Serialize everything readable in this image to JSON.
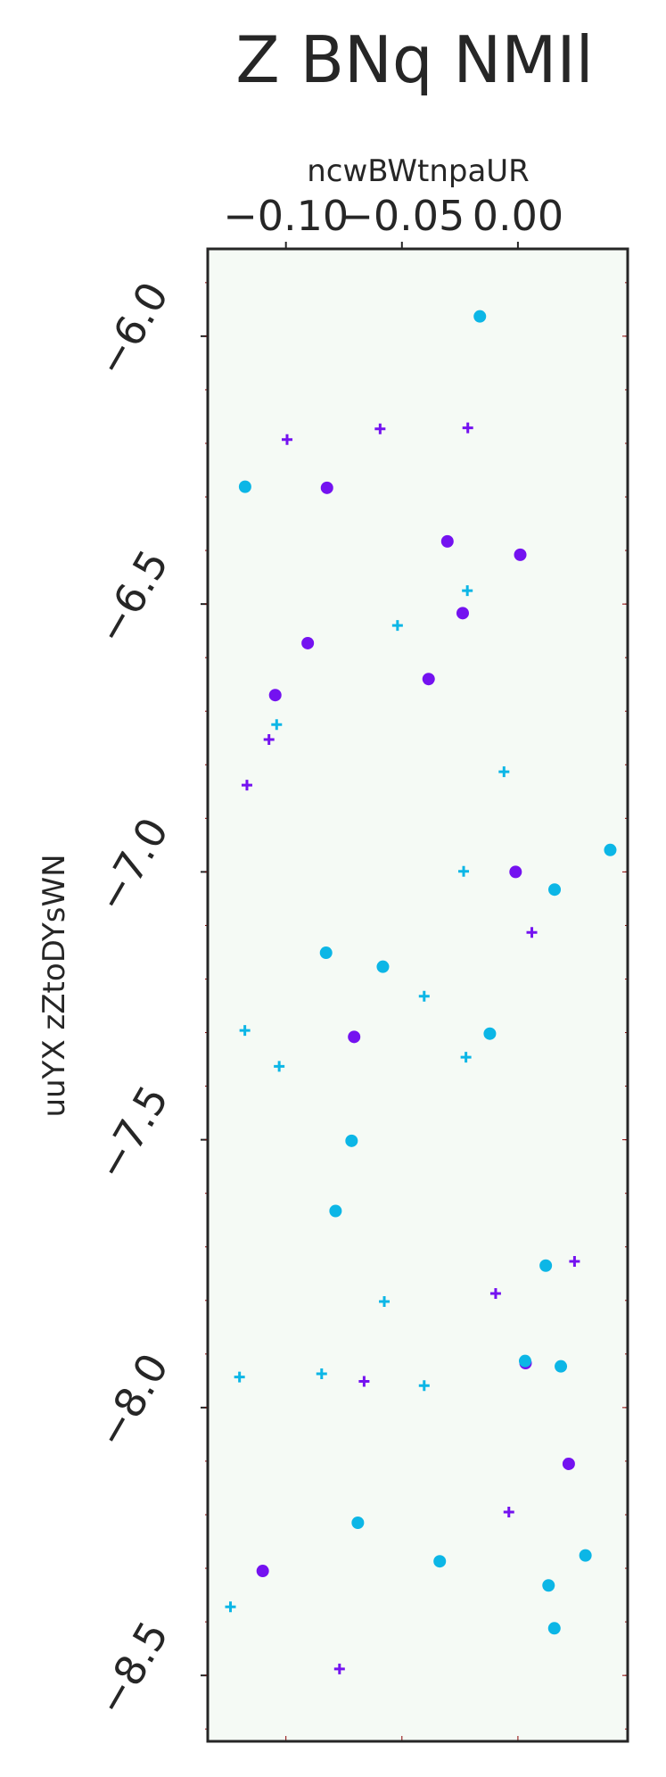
{
  "chart_data": {
    "type": "scatter",
    "title": "Z BNq NMIl",
    "xlabel": "ncwBWtnpaUR",
    "ylabel": "uuYX zZtoDYsWN",
    "x_axis_position": "top",
    "xlim": [
      -0.1337,
      0.0473
    ],
    "ylim": [
      -8.623,
      -5.837
    ],
    "xticks": [
      {
        "value": -0.1,
        "label": "−0.10"
      },
      {
        "value": -0.05,
        "label": "−0.05"
      },
      {
        "value": 0.0,
        "label": "0.00"
      }
    ],
    "yticks": [
      {
        "value": -6.0,
        "label": "−6.0"
      },
      {
        "value": -6.5,
        "label": "−6.5"
      },
      {
        "value": -7.0,
        "label": "−7.0"
      },
      {
        "value": -7.5,
        "label": "−7.5"
      },
      {
        "value": -8.0,
        "label": "−8.0"
      },
      {
        "value": -8.5,
        "label": "−8.5"
      }
    ],
    "plot_background": "#f5faf5",
    "series": [
      {
        "name": "purple-dots",
        "marker": "circle",
        "color": "#7412f0",
        "points": [
          {
            "x": -0.0823,
            "y": -6.283
          },
          {
            "x": -0.0304,
            "y": -6.383
          },
          {
            "x": 0.001,
            "y": -6.408
          },
          {
            "x": -0.0238,
            "y": -6.517
          },
          {
            "x": -0.0906,
            "y": -6.573
          },
          {
            "x": -0.0385,
            "y": -6.64
          },
          {
            "x": -0.1046,
            "y": -6.67
          },
          {
            "x": -0.001,
            "y": -7.0
          },
          {
            "x": -0.0706,
            "y": -7.308
          },
          {
            "x": 0.0033,
            "y": -7.917
          },
          {
            "x": 0.0219,
            "y": -8.105
          },
          {
            "x": -0.11,
            "y": -8.305
          }
        ]
      },
      {
        "name": "purple-plus",
        "marker": "plus",
        "color": "#7412f0",
        "points": [
          {
            "x": -0.0995,
            "y": -6.193
          },
          {
            "x": -0.0594,
            "y": -6.173
          },
          {
            "x": -0.0216,
            "y": -6.171
          },
          {
            "x": -0.1073,
            "y": -6.753
          },
          {
            "x": -0.1168,
            "y": -6.838
          },
          {
            "x": 0.006,
            "y": -7.113
          },
          {
            "x": 0.0244,
            "y": -7.727
          },
          {
            "x": -0.0096,
            "y": -7.787
          },
          {
            "x": -0.0663,
            "y": -7.951
          },
          {
            "x": -0.0039,
            "y": -8.195
          },
          {
            "x": -0.0769,
            "y": -8.488
          }
        ]
      },
      {
        "name": "cyan-dots",
        "marker": "circle",
        "color": "#0cb6e6",
        "points": [
          {
            "x": -0.0164,
            "y": -5.963
          },
          {
            "x": -0.1176,
            "y": -6.281
          },
          {
            "x": 0.0398,
            "y": -6.959
          },
          {
            "x": 0.0158,
            "y": -7.033
          },
          {
            "x": -0.0827,
            "y": -7.151
          },
          {
            "x": -0.0582,
            "y": -7.177
          },
          {
            "x": -0.0121,
            "y": -7.302
          },
          {
            "x": -0.0717,
            "y": -7.502
          },
          {
            "x": -0.0786,
            "y": -7.633
          },
          {
            "x": 0.012,
            "y": -7.735
          },
          {
            "x": 0.0031,
            "y": -7.913
          },
          {
            "x": 0.0185,
            "y": -7.923
          },
          {
            "x": -0.069,
            "y": -8.215
          },
          {
            "x": -0.0337,
            "y": -8.287
          },
          {
            "x": 0.0291,
            "y": -8.276
          },
          {
            "x": 0.0132,
            "y": -8.332
          },
          {
            "x": 0.0157,
            "y": -8.412
          }
        ]
      },
      {
        "name": "cyan-plus",
        "marker": "plus",
        "color": "#0cb6e6",
        "points": [
          {
            "x": -0.0218,
            "y": -6.475
          },
          {
            "x": -0.0519,
            "y": -6.54
          },
          {
            "x": -0.104,
            "y": -6.725
          },
          {
            "x": -0.006,
            "y": -6.813
          },
          {
            "x": -0.0234,
            "y": -6.999
          },
          {
            "x": -0.0404,
            "y": -7.232
          },
          {
            "x": -0.1177,
            "y": -7.296
          },
          {
            "x": -0.1029,
            "y": -7.363
          },
          {
            "x": -0.0224,
            "y": -7.346
          },
          {
            "x": -0.0576,
            "y": -7.802
          },
          {
            "x": -0.0846,
            "y": -7.937
          },
          {
            "x": -0.12,
            "y": -7.943
          },
          {
            "x": -0.0404,
            "y": -7.959
          },
          {
            "x": -0.1239,
            "y": -8.372
          }
        ]
      }
    ]
  }
}
